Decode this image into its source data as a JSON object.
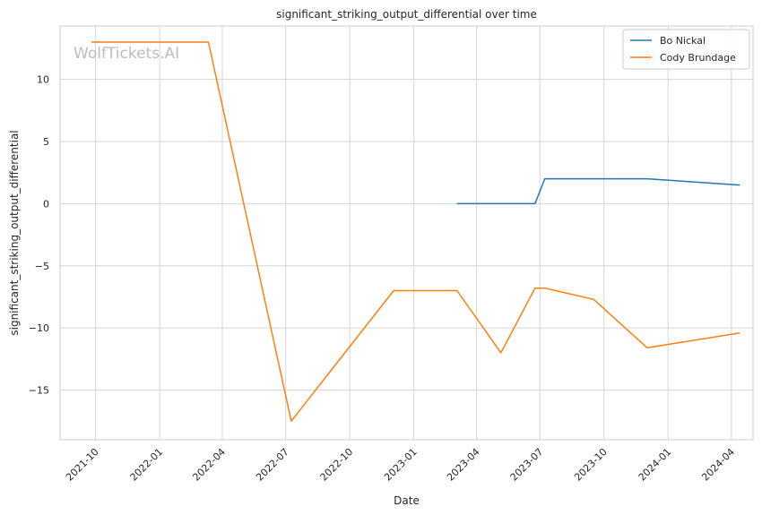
{
  "chart_data": {
    "type": "line",
    "title": "significant_striking_output_differential over time",
    "xlabel": "Date",
    "ylabel": "significant_striking_output_differential",
    "watermark": "WolfTickets.AI",
    "x_ticks": [
      "2021-10",
      "2022-01",
      "2022-04",
      "2022-07",
      "2022-10",
      "2023-01",
      "2023-04",
      "2023-07",
      "2023-10",
      "2024-01",
      "2024-04"
    ],
    "y_ticks": [
      -15,
      -10,
      -5,
      0,
      5,
      10
    ],
    "xlim": [
      "2021-08-11",
      "2024-05-02"
    ],
    "ylim": [
      -19.0,
      14.3
    ],
    "grid": true,
    "legend_position": "top-right",
    "series": [
      {
        "name": "Bo Nickal",
        "color": "#1f77b4",
        "points": [
          {
            "x": "2023-03-04",
            "y": 0
          },
          {
            "x": "2023-06-24",
            "y": 0
          },
          {
            "x": "2023-07-08",
            "y": 2
          },
          {
            "x": "2023-12-02",
            "y": 2
          },
          {
            "x": "2024-04-13",
            "y": 1.5
          }
        ]
      },
      {
        "name": "Cody Brundage",
        "color": "#ff7f0e",
        "points": [
          {
            "x": "2021-09-25",
            "y": 13
          },
          {
            "x": "2022-03-12",
            "y": 13
          },
          {
            "x": "2022-07-09",
            "y": -17.5
          },
          {
            "x": "2022-12-03",
            "y": -7
          },
          {
            "x": "2023-03-04",
            "y": -7
          },
          {
            "x": "2023-05-06",
            "y": -12
          },
          {
            "x": "2023-06-24",
            "y": -6.8
          },
          {
            "x": "2023-07-08",
            "y": -6.8
          },
          {
            "x": "2023-09-16",
            "y": -7.7
          },
          {
            "x": "2023-12-02",
            "y": -11.6
          },
          {
            "x": "2024-04-13",
            "y": -10.4
          }
        ]
      }
    ]
  }
}
